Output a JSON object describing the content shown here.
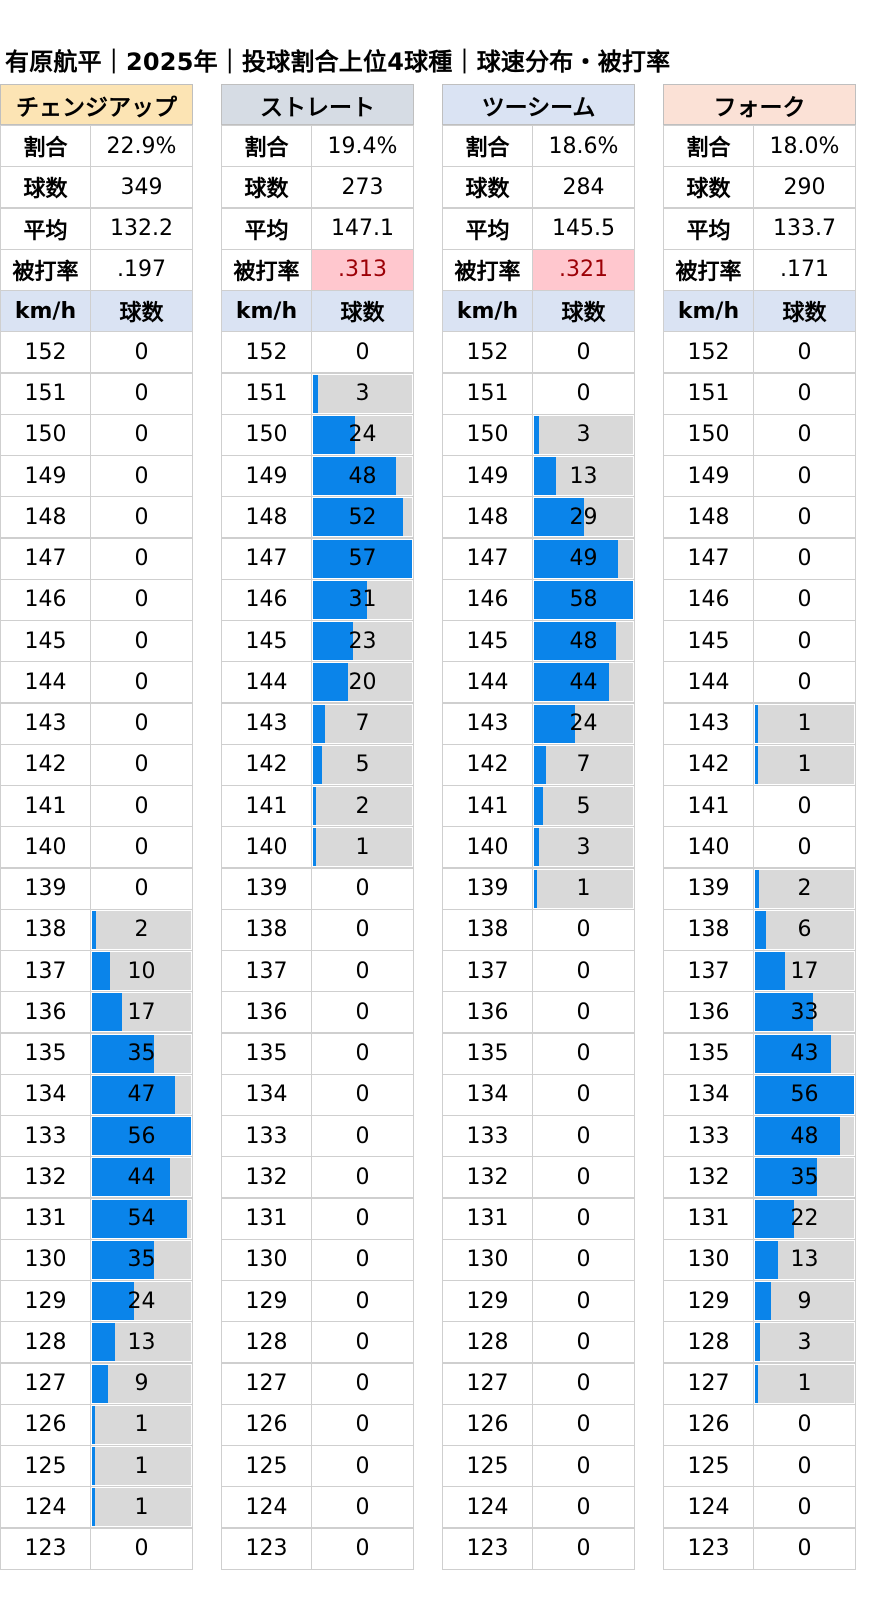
{
  "title": "有原航平｜2025年｜投球割合上位4球種｜球速分布・被打率",
  "labels": {
    "ratio": "割合",
    "count": "球数",
    "avg": "平均",
    "ba": "被打率",
    "speed_col": "km/h",
    "count_col": "球数"
  },
  "colors": {
    "bar": "#0a84ea",
    "bar_track": "#d9d9d9",
    "header": "#dae3f3",
    "highlight_bg": "#ffc7ce",
    "highlight_text": "#9c0006"
  },
  "chart_data": [
    {
      "type": "bar",
      "title": "チェンジアップ",
      "title_color": "#fce4b4",
      "stats": {
        "ratio": "22.9%",
        "count": "349",
        "avg": "132.2",
        "ba": ".197",
        "ba_highlight": false
      },
      "xlabel": "km/h",
      "ylabel": "球数",
      "categories": [
        "152",
        "151",
        "150",
        "149",
        "148",
        "147",
        "146",
        "145",
        "144",
        "143",
        "142",
        "141",
        "140",
        "139",
        "138",
        "137",
        "136",
        "135",
        "134",
        "133",
        "132",
        "131",
        "130",
        "129",
        "128",
        "127",
        "126",
        "125",
        "124",
        "123"
      ],
      "values": [
        0,
        0,
        0,
        0,
        0,
        0,
        0,
        0,
        0,
        0,
        0,
        0,
        0,
        0,
        2,
        10,
        17,
        35,
        47,
        56,
        44,
        54,
        35,
        24,
        13,
        9,
        1,
        1,
        1,
        0
      ]
    },
    {
      "type": "bar",
      "title": "ストレート",
      "title_color": "#d6dce4",
      "stats": {
        "ratio": "19.4%",
        "count": "273",
        "avg": "147.1",
        "ba": ".313",
        "ba_highlight": true
      },
      "xlabel": "km/h",
      "ylabel": "球数",
      "categories": [
        "152",
        "151",
        "150",
        "149",
        "148",
        "147",
        "146",
        "145",
        "144",
        "143",
        "142",
        "141",
        "140",
        "139",
        "138",
        "137",
        "136",
        "135",
        "134",
        "133",
        "132",
        "131",
        "130",
        "129",
        "128",
        "127",
        "126",
        "125",
        "124",
        "123"
      ],
      "values": [
        0,
        3,
        24,
        48,
        52,
        57,
        31,
        23,
        20,
        7,
        5,
        2,
        1,
        0,
        0,
        0,
        0,
        0,
        0,
        0,
        0,
        0,
        0,
        0,
        0,
        0,
        0,
        0,
        0,
        0
      ]
    },
    {
      "type": "bar",
      "title": "ツーシーム",
      "title_color": "#dae3f3",
      "stats": {
        "ratio": "18.6%",
        "count": "284",
        "avg": "145.5",
        "ba": ".321",
        "ba_highlight": true
      },
      "xlabel": "km/h",
      "ylabel": "球数",
      "categories": [
        "152",
        "151",
        "150",
        "149",
        "148",
        "147",
        "146",
        "145",
        "144",
        "143",
        "142",
        "141",
        "140",
        "139",
        "138",
        "137",
        "136",
        "135",
        "134",
        "133",
        "132",
        "131",
        "130",
        "129",
        "128",
        "127",
        "126",
        "125",
        "124",
        "123"
      ],
      "values": [
        0,
        0,
        3,
        13,
        29,
        49,
        58,
        48,
        44,
        24,
        7,
        5,
        3,
        1,
        0,
        0,
        0,
        0,
        0,
        0,
        0,
        0,
        0,
        0,
        0,
        0,
        0,
        0,
        0,
        0
      ]
    },
    {
      "type": "bar",
      "title": "フォーク",
      "title_color": "#fbe1d6",
      "stats": {
        "ratio": "18.0%",
        "count": "290",
        "avg": "133.7",
        "ba": ".171",
        "ba_highlight": false
      },
      "xlabel": "km/h",
      "ylabel": "球数",
      "categories": [
        "152",
        "151",
        "150",
        "149",
        "148",
        "147",
        "146",
        "145",
        "144",
        "143",
        "142",
        "141",
        "140",
        "139",
        "138",
        "137",
        "136",
        "135",
        "134",
        "133",
        "132",
        "131",
        "130",
        "129",
        "128",
        "127",
        "126",
        "125",
        "124",
        "123"
      ],
      "values": [
        0,
        0,
        0,
        0,
        0,
        0,
        0,
        0,
        0,
        1,
        1,
        0,
        0,
        2,
        6,
        17,
        33,
        43,
        56,
        48,
        35,
        22,
        13,
        9,
        3,
        1,
        0,
        0,
        0,
        0
      ]
    }
  ]
}
